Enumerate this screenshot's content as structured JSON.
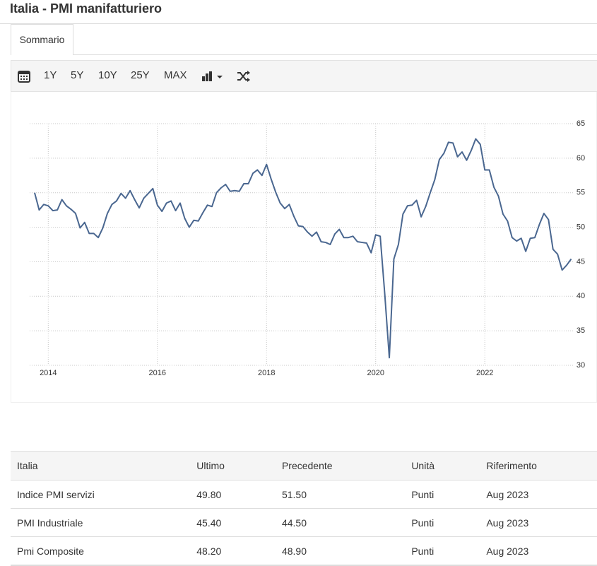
{
  "header": {
    "title": "Italia - PMI manifatturiero"
  },
  "tabs": [
    "Sommario"
  ],
  "toolbar": {
    "ranges": [
      "1Y",
      "5Y",
      "10Y",
      "25Y",
      "MAX"
    ]
  },
  "chart_data": {
    "type": "line",
    "color": "#4a6790",
    "grid": true,
    "categories": [
      null,
      null,
      null,
      "2014",
      null,
      null,
      null,
      null,
      null,
      null,
      null,
      null,
      null,
      null,
      null,
      null,
      null,
      null,
      null,
      null,
      null,
      null,
      null,
      null,
      null,
      null,
      null,
      "2016",
      null,
      null,
      null,
      null,
      null,
      null,
      null,
      null,
      null,
      null,
      null,
      null,
      null,
      null,
      null,
      null,
      null,
      null,
      null,
      null,
      null,
      null,
      null,
      "2018",
      null,
      null,
      null,
      null,
      null,
      null,
      null,
      null,
      null,
      null,
      null,
      null,
      null,
      null,
      null,
      null,
      null,
      null,
      null,
      null,
      null,
      null,
      null,
      "2020",
      null,
      null,
      null,
      null,
      null,
      null,
      null,
      null,
      null,
      null,
      null,
      null,
      null,
      null,
      null,
      null,
      null,
      null,
      null,
      null,
      null,
      null,
      null,
      "2022",
      null,
      null,
      null,
      null,
      null,
      null,
      null,
      null,
      null,
      null,
      null,
      null,
      null,
      null,
      null,
      null,
      null,
      null,
      null
    ],
    "values": [
      55.0,
      52.5,
      53.3,
      53.1,
      52.4,
      52.5,
      54.0,
      53.1,
      52.6,
      52.0,
      49.9,
      50.7,
      49.1,
      49.1,
      48.5,
      49.9,
      52.0,
      53.3,
      53.8,
      54.9,
      54.2,
      55.3,
      54.0,
      52.8,
      54.2,
      54.9,
      55.6,
      53.2,
      52.3,
      53.5,
      53.8,
      52.4,
      53.5,
      51.3,
      50.0,
      51.0,
      50.9,
      52.1,
      53.2,
      53.0,
      55.0,
      55.7,
      56.2,
      55.2,
      55.3,
      55.2,
      56.3,
      56.3,
      57.8,
      58.3,
      57.5,
      59.1,
      57.0,
      55.1,
      53.5,
      52.7,
      53.3,
      51.6,
      50.2,
      50.1,
      49.3,
      48.7,
      49.3,
      47.9,
      47.8,
      47.5,
      49.0,
      49.7,
      48.5,
      48.5,
      48.7,
      47.9,
      47.8,
      47.7,
      46.3,
      48.9,
      48.7,
      40.3,
      31.1,
      45.4,
      47.5,
      51.9,
      53.1,
      53.2,
      53.9,
      51.5,
      53.0,
      55.0,
      56.9,
      59.8,
      60.7,
      62.3,
      62.2,
      60.2,
      60.9,
      59.7,
      61.1,
      62.8,
      62.0,
      58.3,
      58.3,
      55.8,
      54.5,
      51.9,
      50.9,
      48.5,
      48.0,
      48.4,
      46.5,
      48.4,
      48.5,
      50.4,
      52.0,
      51.1,
      46.8,
      46.1,
      43.8,
      44.5,
      45.4
    ],
    "ylim": [
      30,
      65
    ],
    "yticks": [
      30,
      35,
      40,
      45,
      50,
      55,
      60,
      65
    ]
  },
  "table": {
    "header": [
      "Italia",
      "Ultimo",
      "Precedente",
      "Unità",
      "Riferimento"
    ],
    "rows": [
      [
        "Indice PMI servizi",
        "49.80",
        "51.50",
        "Punti",
        "Aug 2023"
      ],
      [
        "PMI Industriale",
        "45.40",
        "44.50",
        "Punti",
        "Aug 2023"
      ],
      [
        "Pmi Composite",
        "48.20",
        "48.90",
        "Punti",
        "Aug 2023"
      ]
    ]
  }
}
